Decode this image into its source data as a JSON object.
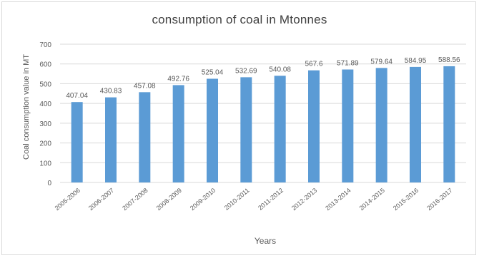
{
  "chart_data": {
    "type": "bar",
    "title": "consumption of coal in Mtonnes",
    "xlabel": "Years",
    "ylabel": "Coal consumption value in MT",
    "categories": [
      "2005-2006",
      "2006-2007",
      "2007-2008",
      "2008-2009",
      "2009-2010",
      "2010-2011",
      "2011-2012",
      "2012-2013",
      "2013-2014",
      "2014-2015",
      "2015-2016",
      "2016-2017"
    ],
    "values": [
      407.04,
      430.83,
      457.08,
      492.76,
      525.04,
      532.69,
      540.08,
      567.6,
      571.89,
      579.64,
      584.95,
      588.56
    ],
    "value_labels": [
      "407.04",
      "430.83",
      "457.08",
      "492.76",
      "525.04",
      "532.69",
      "540.08",
      "567.6",
      "571.89",
      "579.64",
      "584.95",
      "588.56"
    ],
    "ylim": [
      0,
      700
    ],
    "yticks": [
      0,
      100,
      200,
      300,
      400,
      500,
      600,
      700
    ],
    "grid": true,
    "bar_color": "#5b9bd5",
    "grid_color": "#d9d9d9",
    "text_color": "#595959"
  }
}
